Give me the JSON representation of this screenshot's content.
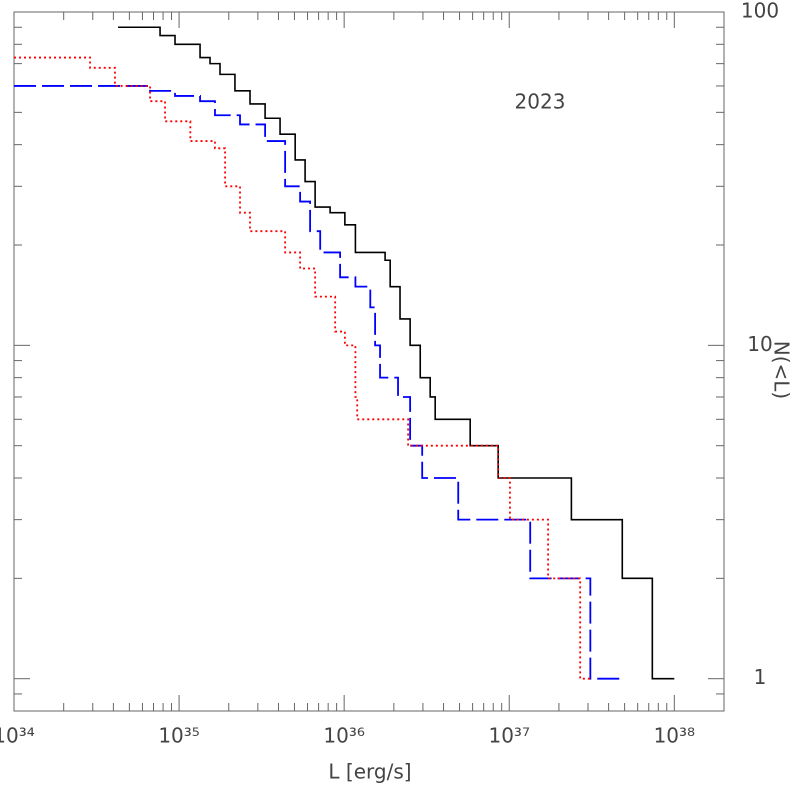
{
  "chart_data": {
    "type": "step",
    "annotation": "2023",
    "x_label": "L [erg/s]",
    "y_label": "N(<L)",
    "xscale": "log",
    "yscale": "log",
    "xlim": [
      1e+34,
      2e+38
    ],
    "ylim": [
      0.8,
      100
    ],
    "xticks": [
      {
        "value": 1e+34,
        "label": "10³⁴"
      },
      {
        "value": 1e+35,
        "label": "10³⁵"
      },
      {
        "value": 1e+36,
        "label": "10³⁶"
      },
      {
        "value": 1e+37,
        "label": "10³⁷"
      },
      {
        "value": 1e+38,
        "label": "10³⁸"
      }
    ],
    "yticks": [
      1,
      10,
      100
    ],
    "minor_xticks": [
      2e+34,
      3e+34,
      4e+34,
      5e+34,
      6e+34,
      7e+34,
      8e+34,
      9e+34,
      2e+35,
      3e+35,
      4e+35,
      5e+35,
      6e+35,
      7e+35,
      8e+35,
      9e+35,
      2e+36,
      3e+36,
      4e+36,
      5e+36,
      6e+36,
      7e+36,
      8e+36,
      9e+36,
      2e+37,
      3e+37,
      4e+37,
      5e+37,
      6e+37,
      7e+37,
      8e+37,
      9e+37
    ],
    "minor_yticks": [
      0.9,
      2,
      3,
      4,
      5,
      6,
      7,
      8,
      9,
      20,
      30,
      40,
      50,
      60,
      70,
      80,
      90
    ],
    "series": [
      {
        "color": "#000000",
        "linestyle": "solid",
        "x": [
          4.27e+34,
          7.67e+34,
          9.45e+34,
          1.34e+35,
          1.54e+35,
          1.77e+35,
          2.18e+35,
          2.69e+35,
          3.32e+35,
          4.09e+35,
          5.05e+35,
          5.8e+35,
          6.67e+35,
          8.22e+35,
          1.01e+36,
          1.17e+36,
          1.77e+36,
          1.9e+36,
          2.18e+36,
          2.51e+36,
          2.89e+36,
          3.32e+36,
          3.56e+36,
          5.8e+36,
          8.57e+36,
          2.38e+37,
          4.84e+37,
          7.36e+37,
          1e+38
        ],
        "values": [
          90,
          85,
          80,
          73,
          70,
          65,
          58,
          53,
          48,
          43,
          36,
          31,
          26,
          25,
          23,
          19,
          18,
          15,
          12,
          10,
          8,
          7,
          6,
          5,
          4,
          3,
          2,
          1,
          1
        ]
      },
      {
        "color": "#0000ff",
        "linestyle": "dashed",
        "x": [
          1e+34,
          6.67e+34,
          9.45e+34,
          1.34e+35,
          1.65e+35,
          2.34e+35,
          3.32e+35,
          4.39e+35,
          5.41e+35,
          6.22e+35,
          7.16e+35,
          9.45e+35,
          1.17e+36,
          1.44e+36,
          1.54e+36,
          1.65e+36,
          2.12e+36,
          2.51e+36,
          2.97e+36,
          4.91e+36,
          1.34e+37,
          3.1e+37,
          4.71e+37
        ],
        "values": [
          60,
          58,
          56,
          54,
          49,
          46,
          41,
          30,
          27,
          22,
          19,
          16,
          15,
          13,
          10,
          8,
          7,
          5,
          4,
          3,
          2,
          1,
          1
        ]
      },
      {
        "color": "#ff0000",
        "linestyle": "dotted",
        "x": [
          1e+34,
          2.19e+34,
          2.89e+34,
          4.09e+34,
          6.67e+34,
          8.22e+34,
          1.17e+35,
          1.65e+35,
          1.9e+35,
          2.34e+35,
          2.69e+35,
          4.39e+35,
          5.41e+35,
          6.67e+35,
          8.82e+35,
          1.01e+36,
          1.17e+36,
          1.2e+36,
          2.44e+36,
          8.57e+36,
          1.01e+37,
          1.72e+37,
          2.69e+37,
          3.1e+37
        ],
        "values": [
          73,
          73,
          68,
          60,
          54,
          47,
          41,
          39,
          30,
          25,
          22,
          19,
          17,
          14,
          11,
          10,
          7,
          6,
          5,
          4,
          3,
          2,
          1,
          1
        ]
      }
    ]
  }
}
